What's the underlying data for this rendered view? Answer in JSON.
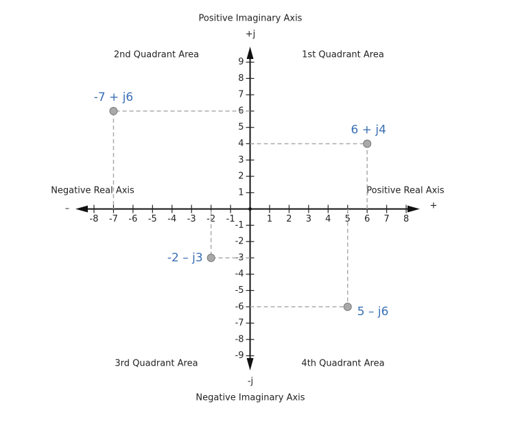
{
  "chart_data": {
    "type": "scatter",
    "top_axis_label": "Positive Imaginary Axis",
    "bottom_axis_label": "Negative Imaginary Axis",
    "left_axis_label": "Negative Real Axis",
    "right_axis_label": "Positive Real Axis",
    "top_symbol": "+j",
    "bottom_symbol": "-j",
    "right_symbol": "+",
    "left_symbol": "–",
    "quadrants": [
      "1st Quadrant Area",
      "2nd Quadrant Area",
      "3rd Quadrant Area",
      "4th Quadrant Area"
    ],
    "xlim": [
      -8.95,
      8.7
    ],
    "ylim": [
      -9.9,
      9.95
    ],
    "xticks": [
      -8,
      -7,
      -6,
      -5,
      -4,
      -3,
      -2,
      -1,
      1,
      2,
      3,
      4,
      5,
      6,
      7,
      8
    ],
    "yticks": [
      -9,
      -8,
      -7,
      -6,
      -5,
      -4,
      -3,
      -2,
      -1,
      1,
      2,
      3,
      4,
      5,
      6,
      7,
      8,
      9
    ],
    "series": [
      {
        "x": [
          -7,
          6,
          -2,
          5
        ],
        "values": [
          6,
          4,
          -3,
          -6
        ],
        "point_labels": [
          "-7 + j6",
          "6 + j4",
          "-2 – j3",
          "5 – j6"
        ],
        "color": "#a9a9a9",
        "label_color": "#3a6fb5"
      }
    ]
  }
}
